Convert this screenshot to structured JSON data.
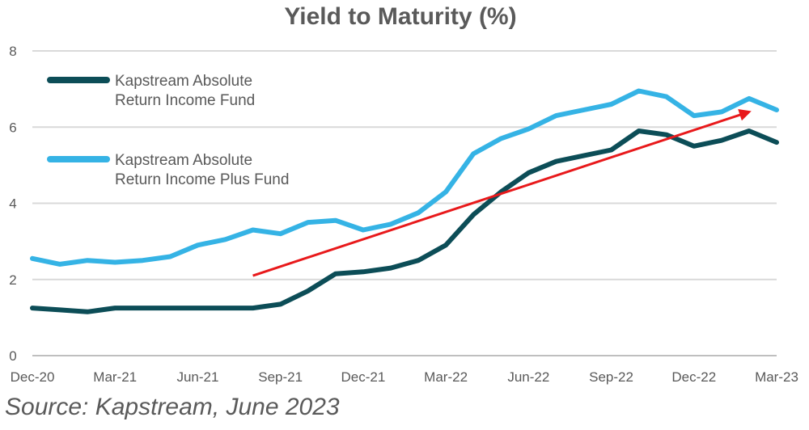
{
  "title": "Yield to Maturity (%)",
  "source": "Source: Kapstream, June 2023",
  "colors": {
    "series1": "#0c4d57",
    "series2": "#35b3e5",
    "arrow": "#e8191b",
    "grid": "#d9d9d9",
    "axis_text": "#595959"
  },
  "chart_data": {
    "type": "line",
    "title": "Yield to Maturity (%)",
    "xlabel": "",
    "ylabel": "",
    "ylim": [
      0,
      8
    ],
    "yticks": [
      0,
      2,
      4,
      6,
      8
    ],
    "xlim": [
      "2020-12",
      "2023-03"
    ],
    "xticks": [
      "Dec-20",
      "Mar-21",
      "Jun-21",
      "Sep-21",
      "Dec-21",
      "Mar-22",
      "Jun-22",
      "Sep-22",
      "Dec-22",
      "Mar-23"
    ],
    "grid": true,
    "legend_position": "top-left",
    "x": [
      "2020-12",
      "2021-01",
      "2021-02",
      "2021-03",
      "2021-04",
      "2021-05",
      "2021-06",
      "2021-07",
      "2021-08",
      "2021-09",
      "2021-10",
      "2021-11",
      "2021-12",
      "2022-01",
      "2022-02",
      "2022-03",
      "2022-04",
      "2022-05",
      "2022-06",
      "2022-07",
      "2022-08",
      "2022-09",
      "2022-10",
      "2022-11",
      "2022-12",
      "2023-01",
      "2023-02",
      "2023-03"
    ],
    "series": [
      {
        "name": "Kapstream Absolute Return Income Fund",
        "values": [
          1.25,
          1.2,
          1.15,
          1.25,
          1.25,
          1.25,
          1.25,
          1.25,
          1.25,
          1.35,
          1.7,
          2.15,
          2.2,
          2.3,
          2.5,
          2.9,
          3.7,
          4.3,
          4.8,
          5.1,
          5.25,
          5.4,
          5.9,
          5.8,
          5.5,
          5.65,
          5.9,
          5.6
        ]
      },
      {
        "name": "Kapstream Absolute Return Income Plus Fund",
        "values": [
          2.55,
          2.4,
          2.5,
          2.45,
          2.5,
          2.6,
          2.9,
          3.05,
          3.3,
          3.2,
          3.5,
          3.55,
          3.3,
          3.45,
          3.75,
          4.3,
          5.3,
          5.7,
          5.95,
          6.3,
          6.45,
          6.6,
          6.95,
          6.8,
          6.3,
          6.4,
          6.75,
          6.45
        ]
      }
    ],
    "annotations": [
      {
        "type": "arrow",
        "from": [
          "2021-08",
          2.1
        ],
        "to": [
          "2023-02",
          6.4
        ]
      }
    ]
  }
}
